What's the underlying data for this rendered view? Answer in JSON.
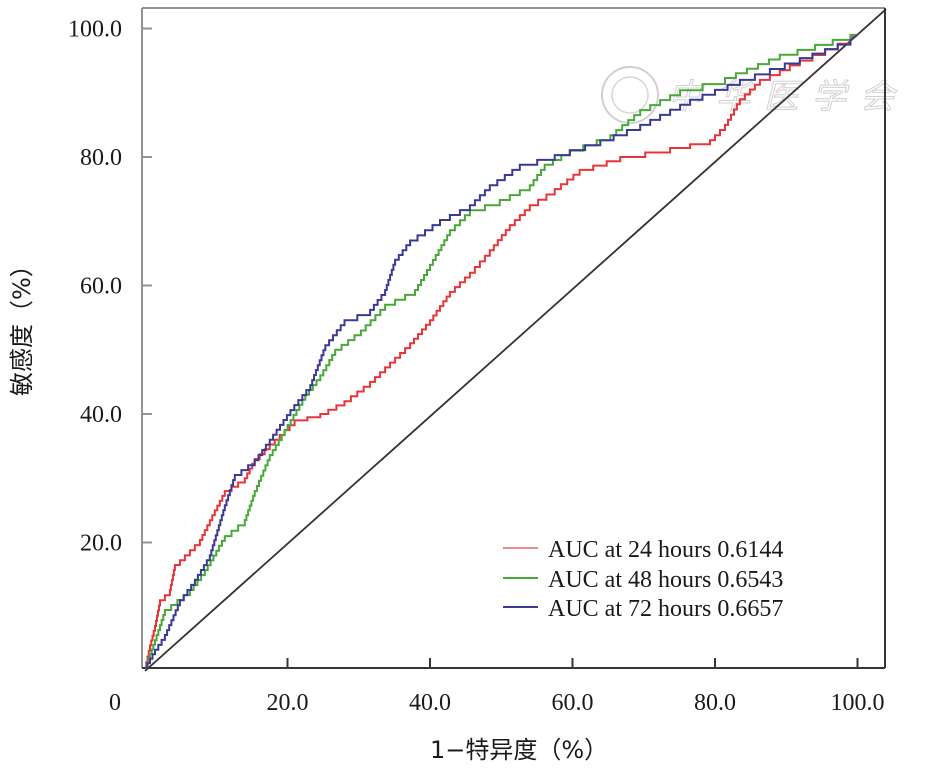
{
  "chart_data": {
    "type": "line",
    "title": "",
    "xlabel": "1−特异度（%）",
    "ylabel": "敏感度（%）",
    "xlim": [
      0,
      100
    ],
    "ylim": [
      0,
      100
    ],
    "x_ticks": [
      "0",
      "20.0",
      "40.0",
      "60.0",
      "80.0",
      "100.0"
    ],
    "y_ticks": [
      "20.0",
      "40.0",
      "60.0",
      "80.0",
      "100.0"
    ],
    "x_tick_values": [
      0,
      20,
      40,
      60,
      80,
      100
    ],
    "y_tick_values": [
      20,
      40,
      60,
      80,
      100
    ],
    "grid": false,
    "legend_position": "bottom-right",
    "reference_line": {
      "name": "diagonal",
      "x": [
        0,
        104
      ],
      "y": [
        0,
        103
      ],
      "color": "#3a3030"
    },
    "series": [
      {
        "name": "AUC at 24 hours 0.6144",
        "color": "#e8353a",
        "x": [
          0,
          0.7,
          1.4,
          2.1,
          3.5,
          4.2,
          5.6,
          7.7,
          9.8,
          11.2,
          14,
          15.4,
          18.2,
          21,
          24.6,
          28,
          31.6,
          34.4,
          37.2,
          40,
          42.8,
          45.6,
          48.4,
          51.2,
          54,
          57.5,
          61,
          66.7,
          73.7,
          79.3,
          81.4,
          83.5,
          86.3,
          91.9,
          99
        ],
        "y": [
          0.5,
          4,
          7,
          11,
          12.6,
          16.5,
          18,
          20.4,
          25,
          28,
          30,
          33,
          36,
          39,
          40,
          42,
          45,
          48,
          51,
          54.6,
          59,
          62,
          65.5,
          69.4,
          72.5,
          75,
          78,
          80,
          81.4,
          82.6,
          85,
          89,
          92,
          95,
          98.5
        ]
      },
      {
        "name": "AUC at 48 hours 0.6543",
        "color": "#4aa83a",
        "x": [
          0,
          1.4,
          2.8,
          6.3,
          8.4,
          11.2,
          14,
          15.4,
          17.5,
          19.6,
          22.5,
          24.6,
          26.7,
          30.3,
          33.7,
          37.9,
          40,
          42.8,
          45.6,
          49.8,
          54,
          56.1,
          59.6,
          65.3,
          69.5,
          75.1,
          81.4,
          89.1,
          99
        ],
        "y": [
          0.5,
          4.8,
          9.5,
          12.6,
          15.7,
          21,
          23.5,
          28,
          33.6,
          37.5,
          43,
          46,
          50,
          53,
          57,
          59.3,
          63.2,
          68.6,
          71.7,
          73.3,
          75.6,
          78.8,
          81,
          83.4,
          87.3,
          90.4,
          92.3,
          95.9,
          99
        ]
      },
      {
        "name": "AUC at 72 hours 0.6657",
        "color": "#3a3a95",
        "x": [
          0,
          1.4,
          2.8,
          4.9,
          7,
          9.1,
          11.2,
          12.6,
          15.4,
          17.5,
          20.4,
          23.2,
          25.3,
          28,
          31.6,
          33.7,
          35.1,
          37.2,
          41.4,
          45.6,
          48.4,
          52.6,
          57.5,
          63.9,
          69.5,
          76.5,
          83.5,
          91.9,
          99
        ],
        "y": [
          0.5,
          3.3,
          5.6,
          11,
          14.2,
          18,
          25.8,
          30.5,
          32.8,
          36,
          40.6,
          44.5,
          50.7,
          54.6,
          56.2,
          59.3,
          64,
          67,
          70.2,
          72.5,
          75.6,
          78.8,
          80.3,
          82.6,
          85,
          88.9,
          92,
          95.4,
          98.2
        ]
      }
    ],
    "legend": [
      {
        "label": "AUC at 24 hours 0.6144",
        "color": "#f08890"
      },
      {
        "label": "AUC at 48 hours 0.6543",
        "color": "#4aa83a"
      },
      {
        "label": "AUC at 72 hours 0.6657",
        "color": "#3a3a95"
      }
    ],
    "watermark": "中华医学会"
  }
}
